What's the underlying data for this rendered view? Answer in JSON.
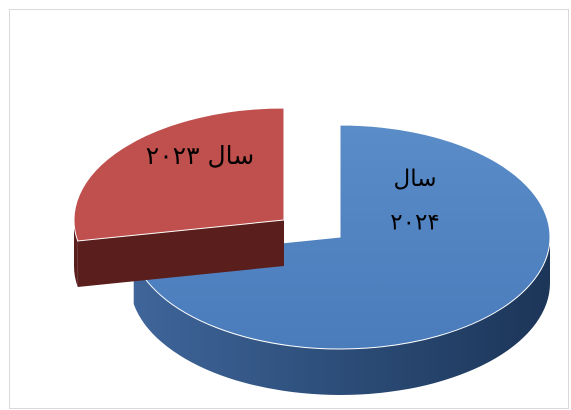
{
  "chart_data": {
    "type": "pie",
    "style": "3d-exploded",
    "title": "",
    "legend": "none",
    "categories": [
      "سال ۲۰۲۴",
      "سال ۲۰۲۳"
    ],
    "values": [
      72,
      28
    ],
    "unit": "percent",
    "colors": [
      "#4f81bd",
      "#c0504d"
    ],
    "label_lines": [
      [
        "سال",
        "۲۰۲۴"
      ],
      [
        "سال ۲۰۲۳"
      ]
    ]
  }
}
